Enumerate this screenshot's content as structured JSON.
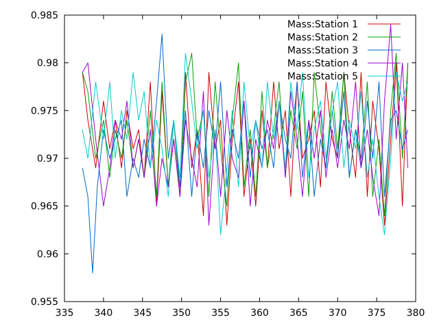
{
  "chart_data": {
    "type": "line",
    "title": "",
    "xlabel": "",
    "ylabel": "",
    "xlim": [
      335,
      380
    ],
    "ylim": [
      0.955,
      0.985
    ],
    "x_ticks": [
      335,
      340,
      345,
      350,
      355,
      360,
      365,
      370,
      375,
      380
    ],
    "x_tick_labels": [
      "335",
      "340",
      "345",
      "350",
      "355",
      "360",
      "365",
      "370",
      "375",
      "380"
    ],
    "y_ticks": [
      0.955,
      0.96,
      0.965,
      0.97,
      0.975,
      0.98,
      0.985
    ],
    "y_tick_labels": [
      "0.955",
      "0.96",
      "0.965",
      "0.97",
      "0.975",
      "0.98",
      "0.985"
    ],
    "grid": false,
    "legend_position": "top-right",
    "series": [
      {
        "name": "Mass:Station 1",
        "color": "#cc0000",
        "x": [
          337.3,
          338,
          339,
          340,
          340.8,
          341.5,
          342.3,
          343,
          343.8,
          344.5,
          345.2,
          346,
          346.8,
          347.5,
          348.3,
          349,
          349.8,
          350.5,
          351.3,
          352,
          352.8,
          353.5,
          354.3,
          355,
          355.8,
          356.5,
          357.3,
          358,
          358.8,
          359.5,
          360.3,
          361,
          361.8,
          362.5,
          363.3,
          364,
          364.8,
          365.5,
          366.3,
          367,
          367.8,
          368.5,
          369.3,
          370,
          370.8,
          371.5,
          372.3,
          373,
          373.8,
          374.5,
          375.3,
          376,
          376.8,
          377.5,
          378.3,
          379
        ],
        "y": [
          0.979,
          0.974,
          0.969,
          0.976,
          0.971,
          0.974,
          0.969,
          0.975,
          0.971,
          0.973,
          0.968,
          0.978,
          0.965,
          0.977,
          0.967,
          0.972,
          0.966,
          0.979,
          0.969,
          0.973,
          0.964,
          0.979,
          0.971,
          0.974,
          0.963,
          0.972,
          0.978,
          0.966,
          0.972,
          0.965,
          0.975,
          0.969,
          0.978,
          0.971,
          0.975,
          0.966,
          0.978,
          0.97,
          0.972,
          0.975,
          0.967,
          0.978,
          0.972,
          0.97,
          0.979,
          0.973,
          0.968,
          0.979,
          0.966,
          0.976,
          0.971,
          0.963,
          0.972,
          0.98,
          0.965,
          0.98
        ]
      },
      {
        "name": "Mass:Station 2",
        "color": "#00a000",
        "x": [
          337.3,
          338,
          339,
          340,
          340.8,
          341.5,
          342.3,
          343,
          343.8,
          344.5,
          345.2,
          346,
          346.8,
          347.5,
          348.3,
          349,
          349.8,
          350.5,
          351.3,
          352,
          352.8,
          353.5,
          354.3,
          355,
          355.8,
          356.5,
          357.3,
          358,
          358.8,
          359.5,
          360.3,
          361,
          361.8,
          362.5,
          363.3,
          364,
          364.8,
          365.5,
          366.3,
          367,
          367.8,
          368.5,
          369.3,
          370,
          370.8,
          371.5,
          372.3,
          373,
          373.8,
          374.5,
          375.3,
          376,
          376.8,
          377.5,
          378.3,
          379
        ],
        "y": [
          0.979,
          0.977,
          0.97,
          0.974,
          0.968,
          0.973,
          0.97,
          0.974,
          0.969,
          0.972,
          0.968,
          0.975,
          0.966,
          0.978,
          0.967,
          0.974,
          0.966,
          0.978,
          0.981,
          0.972,
          0.975,
          0.966,
          0.978,
          0.971,
          0.965,
          0.974,
          0.98,
          0.967,
          0.973,
          0.966,
          0.977,
          0.969,
          0.973,
          0.978,
          0.968,
          0.975,
          0.971,
          0.977,
          0.966,
          0.979,
          0.973,
          0.969,
          0.977,
          0.971,
          0.979,
          0.968,
          0.973,
          0.97,
          0.978,
          0.966,
          0.972,
          0.964,
          0.975,
          0.981,
          0.97,
          0.98
        ]
      },
      {
        "name": "Mass:Station 3",
        "color": "#0066cc",
        "x": [
          337.3,
          338,
          338.6,
          339.2,
          340,
          340.8,
          341.5,
          342.3,
          343,
          343.8,
          344.5,
          345.2,
          346,
          346.8,
          347.5,
          348.3,
          349,
          349.8,
          350.5,
          351.3,
          352,
          352.8,
          353.5,
          354.3,
          355,
          355.8,
          356.5,
          357.3,
          358,
          358.8,
          359.5,
          360.3,
          361,
          361.8,
          362.5,
          363.3,
          364,
          364.8,
          365.5,
          366.3,
          367,
          367.8,
          368.5,
          369.3,
          370,
          370.8,
          371.5,
          372.3,
          373,
          373.8,
          374.5,
          375.3,
          376,
          376.8,
          377.5,
          378.3,
          379
        ],
        "y": [
          0.969,
          0.966,
          0.958,
          0.967,
          0.973,
          0.97,
          0.972,
          0.974,
          0.966,
          0.97,
          0.968,
          0.972,
          0.969,
          0.976,
          0.983,
          0.97,
          0.974,
          0.967,
          0.975,
          0.966,
          0.973,
          0.969,
          0.975,
          0.971,
          0.978,
          0.967,
          0.973,
          0.97,
          0.976,
          0.968,
          0.974,
          0.971,
          0.973,
          0.969,
          0.976,
          0.972,
          0.97,
          0.978,
          0.968,
          0.974,
          0.966,
          0.972,
          0.969,
          0.975,
          0.97,
          0.977,
          0.968,
          0.973,
          0.969,
          0.976,
          0.97,
          0.978,
          0.966,
          0.974,
          0.975,
          0.971,
          0.973
        ]
      },
      {
        "name": "Mass:Station 4",
        "color": "#9900cc",
        "x": [
          337.3,
          338,
          339,
          340,
          340.8,
          341.5,
          342.3,
          343,
          343.8,
          344.5,
          345.2,
          346,
          346.8,
          347.5,
          348.3,
          349,
          349.8,
          350.5,
          351.3,
          352,
          352.8,
          353.5,
          354.3,
          355,
          355.8,
          356.5,
          357.3,
          358,
          358.8,
          359.5,
          360.3,
          361,
          361.8,
          362.5,
          363.3,
          364,
          364.8,
          365.5,
          366.3,
          367,
          367.8,
          368.5,
          369.3,
          370,
          370.8,
          371.5,
          372.3,
          373,
          373.8,
          374.5,
          375.3,
          376,
          376.8,
          377.5,
          378.3,
          379
        ],
        "y": [
          0.979,
          0.98,
          0.972,
          0.965,
          0.969,
          0.974,
          0.972,
          0.976,
          0.969,
          0.972,
          0.968,
          0.973,
          0.965,
          0.97,
          0.967,
          0.972,
          0.966,
          0.974,
          0.97,
          0.967,
          0.977,
          0.963,
          0.973,
          0.966,
          0.975,
          0.97,
          0.968,
          0.976,
          0.965,
          0.972,
          0.969,
          0.974,
          0.971,
          0.976,
          0.968,
          0.977,
          0.972,
          0.966,
          0.974,
          0.97,
          0.975,
          0.968,
          0.973,
          0.969,
          0.974,
          0.971,
          0.978,
          0.969,
          0.973,
          0.968,
          0.964,
          0.976,
          0.984,
          0.972,
          0.98,
          0.969
        ]
      },
      {
        "name": "Mass:Station 5",
        "color": "#00cccc",
        "x": [
          337.3,
          338,
          339,
          340,
          340.8,
          341.5,
          342.3,
          343,
          343.8,
          344.5,
          345.2,
          346,
          346.8,
          347.5,
          348.3,
          349,
          349.8,
          350.5,
          351.3,
          352,
          352.8,
          353.5,
          354.3,
          355,
          355.8,
          356.5,
          357.3,
          358,
          358.8,
          359.5,
          360.3,
          361,
          361.8,
          362.5,
          363.3,
          364,
          364.8,
          365.5,
          366.3,
          367,
          367.8,
          368.5,
          369.3,
          370,
          370.8,
          371.5,
          372.3,
          373,
          373.8,
          374.5,
          375.3,
          376,
          376.8,
          377.5,
          378.3,
          379
        ],
        "y": [
          0.973,
          0.97,
          0.978,
          0.972,
          0.978,
          0.97,
          0.975,
          0.972,
          0.979,
          0.974,
          0.977,
          0.969,
          0.974,
          0.971,
          0.966,
          0.974,
          0.968,
          0.981,
          0.976,
          0.971,
          0.975,
          0.968,
          0.973,
          0.962,
          0.969,
          0.975,
          0.967,
          0.978,
          0.971,
          0.974,
          0.969,
          0.978,
          0.972,
          0.976,
          0.969,
          0.978,
          0.973,
          0.979,
          0.968,
          0.973,
          0.976,
          0.97,
          0.975,
          0.978,
          0.969,
          0.974,
          0.971,
          0.977,
          0.968,
          0.972,
          0.966,
          0.962,
          0.97,
          0.979,
          0.976,
          0.978
        ]
      }
    ]
  }
}
